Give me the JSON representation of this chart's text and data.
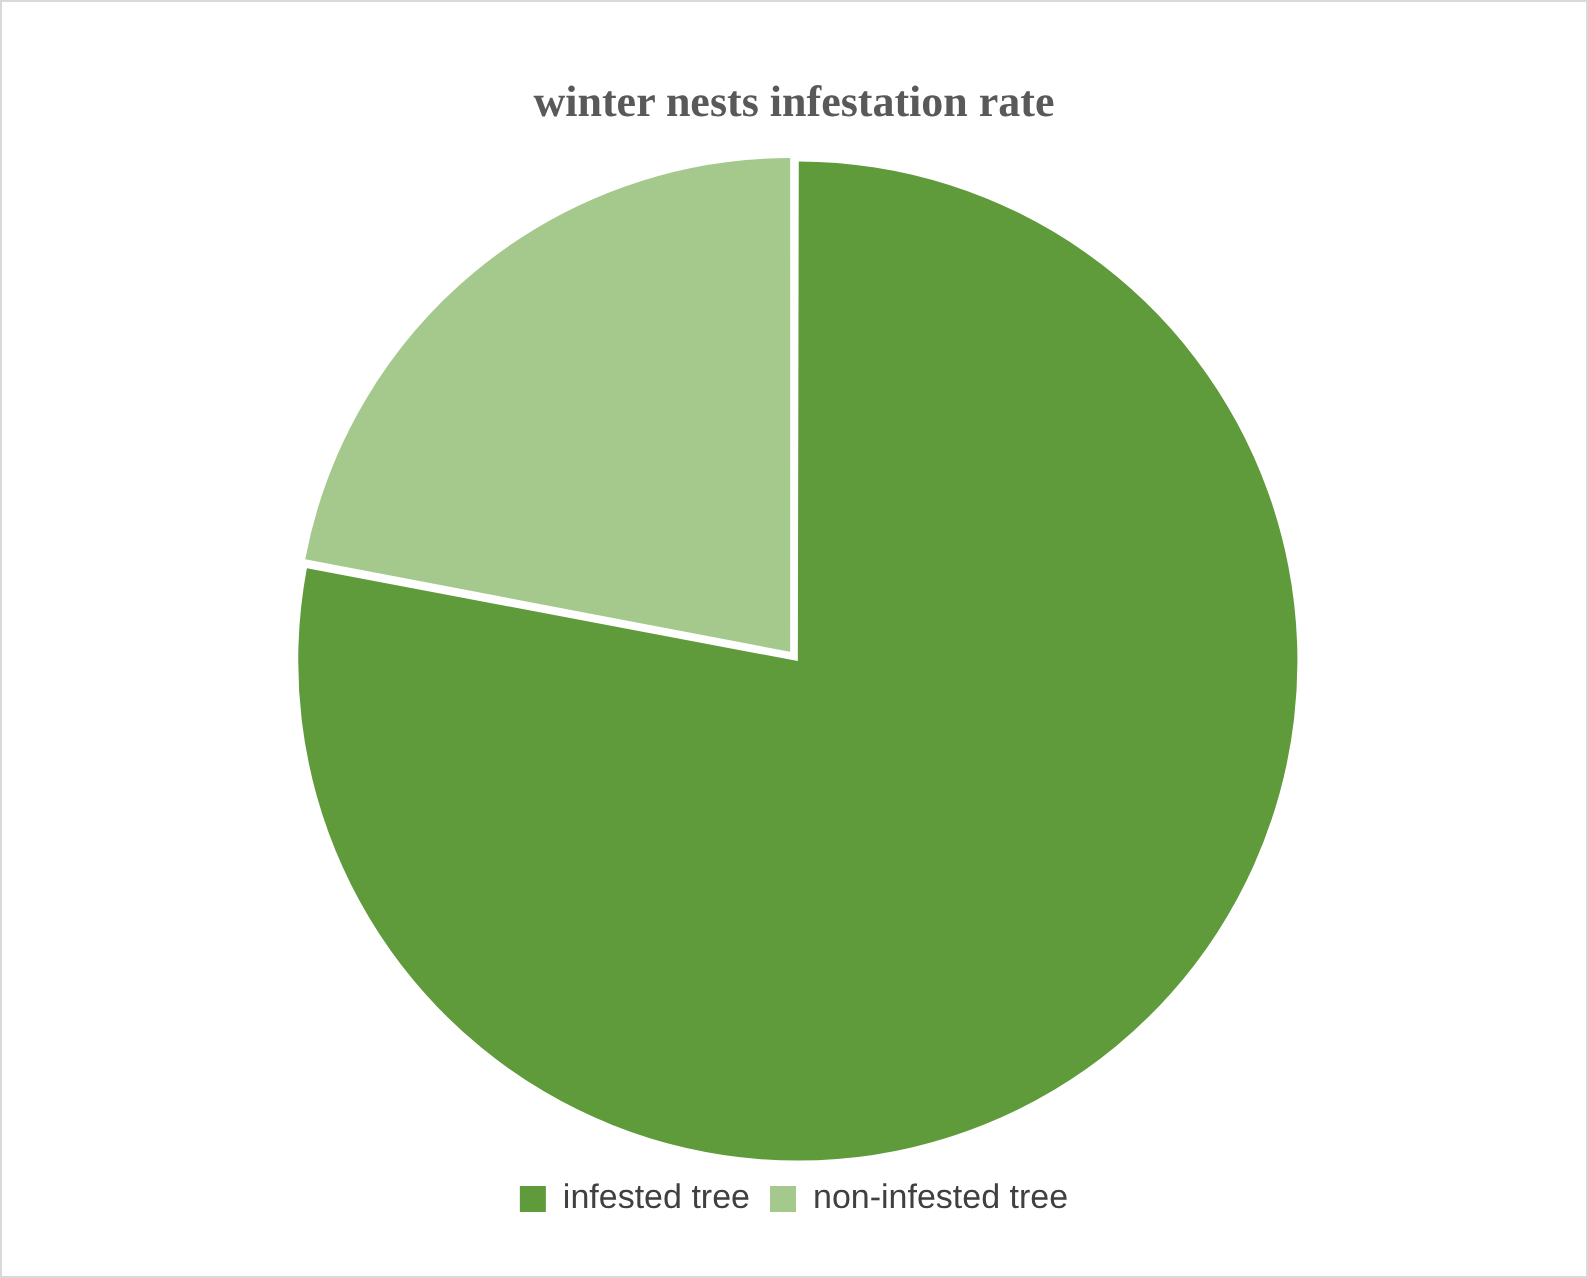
{
  "chart_data": {
    "type": "pie",
    "title": "winter nests infestation rate",
    "categories": [
      "infested tree",
      "non-infested tree"
    ],
    "values": [
      78,
      22
    ],
    "colors": [
      "#5f9a3b",
      "#a5c98c"
    ],
    "legend": "bottom"
  }
}
